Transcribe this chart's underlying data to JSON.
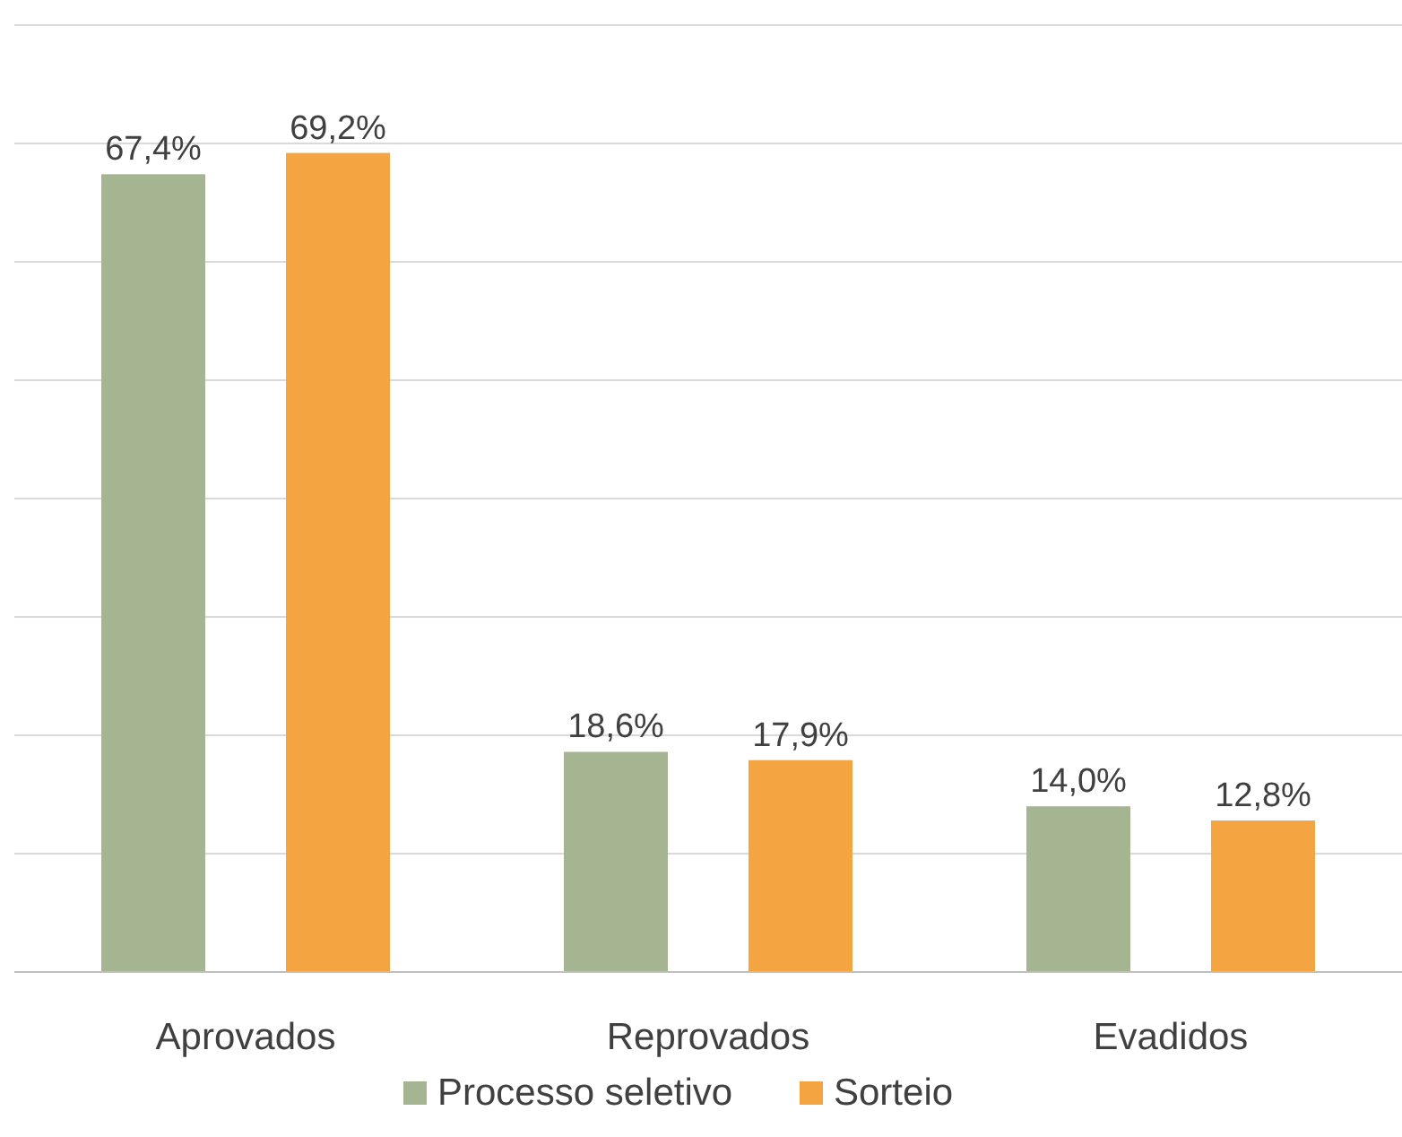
{
  "chart_data": {
    "type": "bar",
    "categories": [
      "Aprovados",
      "Reprovados",
      "Evadidos"
    ],
    "series": [
      {
        "name": "Processo seletivo",
        "color": "#a5b592",
        "values": [
          67.4,
          18.6,
          14.0
        ],
        "value_labels": [
          "67,4%",
          "18,6%",
          "14,0%"
        ]
      },
      {
        "name": "Sorteio",
        "color": "#f4a441",
        "values": [
          69.2,
          17.9,
          12.8
        ],
        "value_labels": [
          "69,2%",
          "17,9%",
          "12,8%"
        ]
      }
    ],
    "ylim": [
      0,
      80
    ],
    "yticks": [
      {
        "value": 0,
        "label": null
      },
      {
        "value": 10,
        "label": null
      },
      {
        "value": 20,
        "label": null
      },
      {
        "value": 30,
        "label": null
      },
      {
        "value": 40,
        "label": null
      },
      {
        "value": 50,
        "label": null
      },
      {
        "value": 60,
        "label": null
      },
      {
        "value": 70,
        "label": null
      },
      {
        "value": 80,
        "label": null
      }
    ],
    "grid": true,
    "legend": "bottom",
    "tick_labels": "x"
  }
}
